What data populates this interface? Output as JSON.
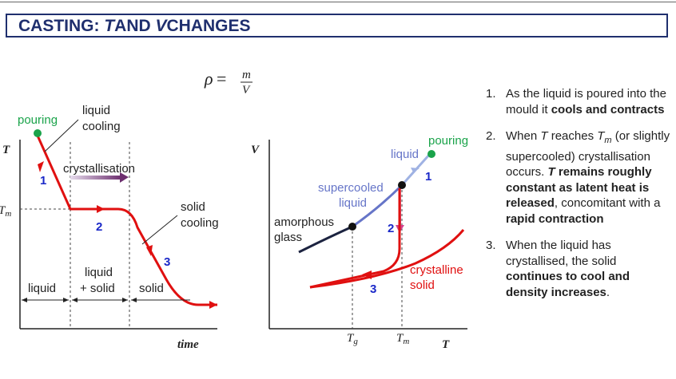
{
  "title": {
    "prefix": "CASTING: ",
    "t": "T",
    "and": "AND ",
    "v": "V",
    "suffix": "CHANGES"
  },
  "formula": {
    "rho": "ρ",
    "eq": " = ",
    "num": "m",
    "den": "V"
  },
  "left_chart": {
    "y_axis": "T",
    "x_axis": "time",
    "tm_label": {
      "main": "T",
      "sub": "m"
    },
    "pouring": "pouring",
    "liquid_cooling": [
      "liquid",
      "cooling"
    ],
    "crystallisation": "crystallisation",
    "solid_cooling": [
      "solid",
      "cooling"
    ],
    "stages": [
      "1",
      "2",
      "3"
    ],
    "regions": {
      "liquid": "liquid",
      "mix": [
        "liquid",
        "+ solid"
      ],
      "solid": "solid"
    }
  },
  "right_chart": {
    "y_axis": "V",
    "x_axis": "T",
    "tg_label": {
      "main": "T",
      "sub": "g"
    },
    "tm_label": {
      "main": "T",
      "sub": "m"
    },
    "pouring": "pouring",
    "liquid": "liquid",
    "supercooled": [
      "supercooled",
      "liquid"
    ],
    "amorphous": [
      "amorphous",
      "glass"
    ],
    "crystalline": [
      "crystalline",
      "solid"
    ],
    "stages": [
      "1",
      "2",
      "3"
    ]
  },
  "colors": {
    "title": "#1f2f6e",
    "red": "#e01010",
    "green": "#1aa34a",
    "number": "#1a28c8",
    "supercooled": "#6675c8",
    "glass": "#1c2340"
  },
  "notes": [
    {
      "num": "1.",
      "parts": [
        {
          "t": "As the liquid is poured into the mould it "
        },
        {
          "t": "cools and contracts",
          "s": "b"
        }
      ]
    },
    {
      "num": "2.",
      "parts": [
        {
          "t": "When "
        },
        {
          "t": "T",
          "s": "i"
        },
        {
          "t": " reaches "
        },
        {
          "t": "T",
          "s": "i"
        },
        {
          "t": "m",
          "s": "sub"
        },
        {
          "t": " (or slightly supercooled) crystallisation occurs. "
        },
        {
          "t": "T",
          "s": "bi"
        },
        {
          "t": " remains roughly constant as latent heat is released",
          "s": "b"
        },
        {
          "t": ", concomitant with a "
        },
        {
          "t": "rapid contraction",
          "s": "b"
        }
      ]
    },
    {
      "num": "3.",
      "parts": [
        {
          "t": "When the liquid has crystallised, the solid "
        },
        {
          "t": "continues to cool and density increases",
          "s": "b"
        },
        {
          "t": "."
        }
      ]
    }
  ]
}
